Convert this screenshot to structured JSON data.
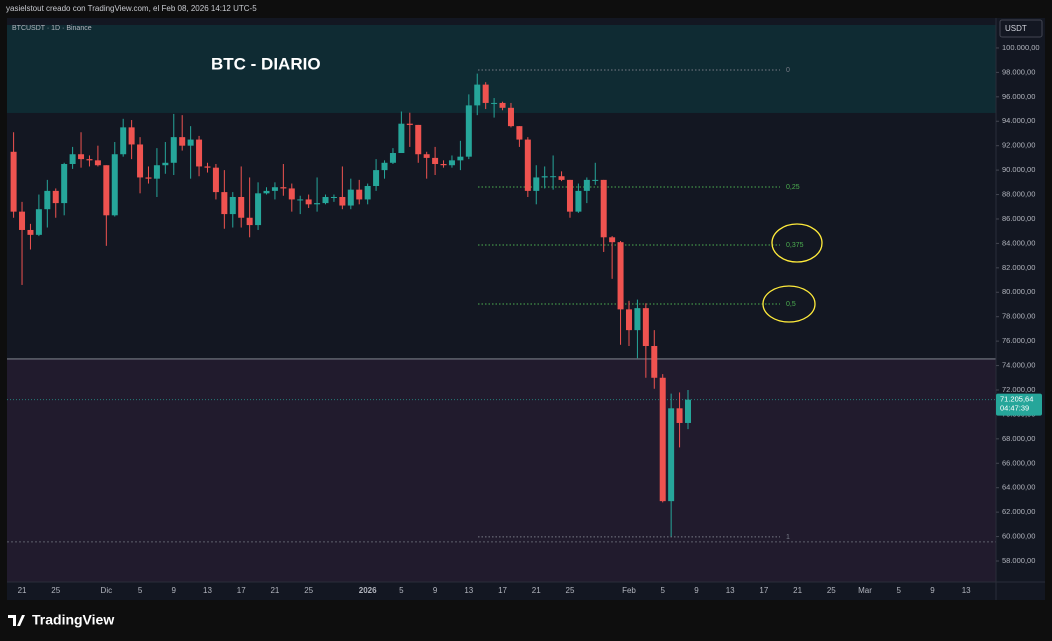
{
  "header": "yasielstout creado con TradingView.com, el Feb 08, 2026 14:12 UTC-5",
  "footer": "TradingView",
  "chart_data": {
    "type": "candlestick",
    "title": "BTC - DIARIO",
    "symbol": "BTCUSDT · 1D · Binance",
    "currency": "USDT",
    "up_color": "#26a69a",
    "down_color": "#ef5350",
    "grid": false,
    "categories": [
      null,
      "21",
      null,
      null,
      null,
      "25",
      null,
      null,
      null,
      null,
      null,
      "Dic",
      null,
      null,
      null,
      "5",
      null,
      null,
      null,
      "9",
      null,
      null,
      null,
      "13",
      null,
      null,
      null,
      "17",
      null,
      null,
      null,
      "21",
      null,
      null,
      null,
      "25",
      null,
      null,
      null,
      null,
      null,
      null,
      "2026",
      null,
      null,
      null,
      "5",
      null,
      null,
      null,
      "9",
      null,
      null,
      null,
      "13",
      null,
      null,
      null,
      "17",
      null,
      null,
      null,
      "21",
      null,
      null,
      null,
      "25",
      null,
      null,
      null,
      null,
      null,
      null,
      "Feb",
      null,
      null,
      null,
      "5",
      null,
      null,
      null,
      "9",
      null,
      null,
      null,
      "13",
      null,
      null,
      null,
      "17",
      null,
      null,
      null,
      "21",
      null,
      null,
      null,
      "25",
      null,
      null,
      null,
      "Mar",
      null,
      null,
      null,
      "5",
      null,
      null,
      null,
      "9",
      null,
      null,
      null,
      "13",
      null,
      null,
      null
    ],
    "open": [
      91500,
      86600,
      85100,
      84700,
      86800,
      88300,
      87300,
      90500,
      91300,
      90900,
      90800,
      90400,
      86300,
      91300,
      93500,
      92100,
      89400,
      89300,
      90400,
      90600,
      92700,
      92000,
      92500,
      90300,
      90200,
      88200,
      86400,
      87800,
      86100,
      85500,
      88100,
      88300,
      88600,
      88500,
      87600,
      87600,
      87200,
      87300,
      87800,
      87800,
      87100,
      88400,
      87600,
      88700,
      90000,
      90600,
      91400,
      93800,
      93700,
      91300,
      91000,
      90500,
      90400,
      90800,
      91100,
      95300,
      97000,
      95500,
      95500,
      95100,
      93600,
      92500,
      88300,
      89400,
      89500,
      89500,
      89200,
      86600,
      88300,
      89200,
      89200,
      84500,
      84100,
      78600,
      76900,
      78700,
      75600,
      73000,
      62900,
      70500,
      69300,
      null,
      null,
      null,
      null,
      null,
      null,
      null,
      null,
      null,
      null,
      null,
      null,
      null,
      null,
      null,
      null,
      null,
      null,
      null,
      null,
      null,
      null,
      null,
      null,
      null,
      null,
      null,
      null,
      null,
      null,
      null,
      null,
      null,
      null,
      null,
      null
    ],
    "high": [
      93100,
      87400,
      85600,
      88000,
      89200,
      88500,
      90600,
      91900,
      93100,
      91200,
      92000,
      90400,
      92300,
      94200,
      94100,
      92700,
      90300,
      91800,
      92300,
      94600,
      94500,
      93600,
      92800,
      90600,
      90500,
      90000,
      88200,
      90300,
      89400,
      89000,
      88600,
      89000,
      90500,
      88900,
      87900,
      88000,
      89400,
      88000,
      88000,
      90300,
      89300,
      89200,
      88900,
      90900,
      90800,
      91800,
      94800,
      94700,
      93700,
      91500,
      91900,
      90800,
      91200,
      92400,
      96200,
      97900,
      97200,
      95900,
      95600,
      95500,
      93600,
      92700,
      90400,
      90300,
      91200,
      89900,
      89200,
      88900,
      89400,
      90600,
      89200,
      84600,
      84200,
      79300,
      79400,
      79100,
      76900,
      73300,
      71700,
      71800,
      72000,
      null,
      null,
      null,
      null,
      null,
      null,
      null,
      null,
      null,
      null,
      null,
      null,
      null,
      null,
      null,
      null,
      null,
      null,
      null,
      null,
      null,
      null,
      null,
      null,
      null,
      null,
      null,
      null,
      null,
      null,
      null,
      null,
      null,
      null,
      null,
      null
    ],
    "low": [
      86100,
      80600,
      83500,
      84600,
      85300,
      86100,
      86300,
      90100,
      90200,
      90300,
      90300,
      83800,
      86200,
      91100,
      90900,
      88100,
      88900,
      87800,
      89700,
      89600,
      91600,
      89300,
      89500,
      89800,
      87600,
      85200,
      85300,
      85300,
      84500,
      85100,
      88000,
      87600,
      87900,
      86600,
      86400,
      86900,
      86600,
      87200,
      87400,
      86800,
      86800,
      87200,
      87200,
      88300,
      89300,
      90500,
      91400,
      91900,
      90600,
      89300,
      89600,
      90200,
      90200,
      90000,
      90900,
      94500,
      95000,
      94300,
      94900,
      93500,
      91900,
      87800,
      87200,
      88500,
      88400,
      89100,
      86100,
      86500,
      87300,
      88800,
      83300,
      81100,
      75700,
      75600,
      74600,
      73000,
      72100,
      62800,
      60000,
      67300,
      68800,
      null,
      null,
      null,
      null,
      null,
      null,
      null,
      null,
      null,
      null,
      null,
      null,
      null,
      null,
      null,
      null,
      null,
      null,
      null,
      null,
      null,
      null,
      null,
      null,
      null,
      null,
      null,
      null,
      null,
      null,
      null,
      null,
      null,
      null,
      null,
      null
    ],
    "close": [
      86600,
      85100,
      84700,
      86800,
      88300,
      87300,
      90500,
      91300,
      90900,
      90800,
      90400,
      86300,
      91300,
      93500,
      92100,
      89400,
      89300,
      90400,
      90600,
      92700,
      92000,
      92500,
      90300,
      90200,
      88200,
      86400,
      87800,
      86100,
      85500,
      88100,
      88300,
      88600,
      88500,
      87600,
      87600,
      87200,
      87300,
      87800,
      87800,
      87100,
      88400,
      87600,
      88700,
      90000,
      90600,
      91400,
      93800,
      93700,
      91300,
      91000,
      90500,
      90400,
      90800,
      91100,
      95300,
      97000,
      95500,
      95500,
      95100,
      93600,
      92500,
      88300,
      89400,
      89500,
      89500,
      89200,
      86600,
      88300,
      89200,
      89200,
      84500,
      84100,
      78600,
      76900,
      78700,
      75600,
      73000,
      62900,
      70500,
      69300,
      71205.64,
      null,
      null,
      null,
      null,
      null,
      null,
      null,
      null,
      null,
      null,
      null,
      null,
      null,
      null,
      null,
      null,
      null,
      null,
      null,
      null,
      null,
      null,
      null,
      null,
      null,
      null,
      null,
      null,
      null,
      null,
      null,
      null,
      null,
      null,
      null,
      null
    ],
    "ylim": [
      56280,
      101880
    ],
    "yticks": [
      {
        "value": 58000,
        "label": "58.000,00"
      },
      {
        "value": 60000,
        "label": "60.000,00"
      },
      {
        "value": 62000,
        "label": "62.000,00"
      },
      {
        "value": 64000,
        "label": "64.000,00"
      },
      {
        "value": 66000,
        "label": "66.000,00"
      },
      {
        "value": 68000,
        "label": "68.000,00"
      },
      {
        "value": 70000,
        "label": "70.000,00"
      },
      {
        "value": 72000,
        "label": "72.000,00"
      },
      {
        "value": 74000,
        "label": "74.000,00"
      },
      {
        "value": 76000,
        "label": "76.000,00"
      },
      {
        "value": 78000,
        "label": "78.000,00"
      },
      {
        "value": 80000,
        "label": "80.000,00"
      },
      {
        "value": 82000,
        "label": "82.000,00"
      },
      {
        "value": 84000,
        "label": "84.000,00"
      },
      {
        "value": 86000,
        "label": "86.000,00"
      },
      {
        "value": 88000,
        "label": "88.000,00"
      },
      {
        "value": 90000,
        "label": "90.000,00"
      },
      {
        "value": 92000,
        "label": "92.000,00"
      },
      {
        "value": 94000,
        "label": "94.000,00"
      },
      {
        "value": 96000,
        "label": "96.000,00"
      },
      {
        "value": 98000,
        "label": "98.000,00"
      },
      {
        "value": 100000,
        "label": "100.000,00"
      }
    ],
    "last_price": {
      "value": 71205.64,
      "label": "71.205,64",
      "countdown": "04:47:39"
    },
    "zones": [
      {
        "from": 94680,
        "to": 101880,
        "color": "#0f2b33"
      },
      {
        "from": 56280,
        "to": 74540,
        "color": "#211b2d"
      }
    ],
    "hline": 74540,
    "dotted_line": 59560,
    "fib": [
      {
        "label": "0",
        "price": 98200,
        "color": "#787b86"
      },
      {
        "label": "0,25",
        "price": 88620,
        "color": "#4caf50"
      },
      {
        "label": "0,375",
        "price": 83870,
        "color": "#4caf50"
      },
      {
        "label": "0,5",
        "price": 79040,
        "color": "#4caf50"
      },
      {
        "label": "1",
        "price": 59970,
        "color": "#787b86"
      }
    ]
  }
}
